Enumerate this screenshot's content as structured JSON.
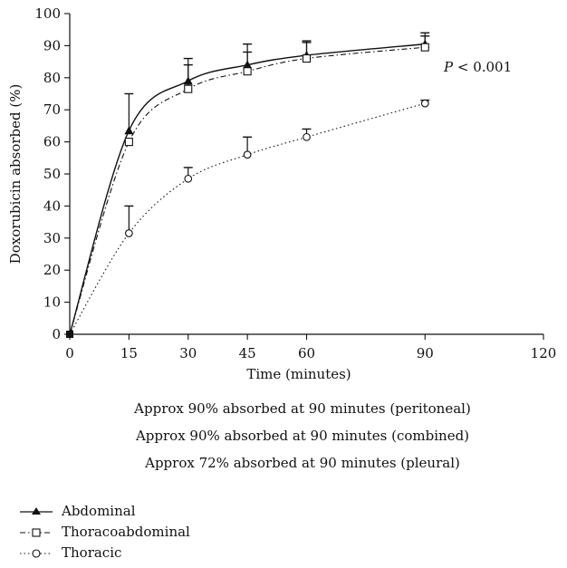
{
  "chart_data": {
    "type": "line",
    "xlabel": "Time (minutes)",
    "ylabel": "Doxorubicin absorbed (%)",
    "xlim": [
      0,
      120
    ],
    "ylim": [
      0,
      100
    ],
    "xticks": [
      0,
      15,
      30,
      45,
      60,
      90,
      120
    ],
    "yticks": [
      0,
      10,
      20,
      30,
      40,
      50,
      60,
      70,
      80,
      90,
      100
    ],
    "annotation": "P < 0.001",
    "series": [
      {
        "name": "Abdominal",
        "line": "solid",
        "marker": "filled-triangle",
        "x": [
          0,
          15,
          30,
          45,
          60,
          90
        ],
        "y": [
          0,
          63.5,
          79,
          84,
          87,
          90.5
        ],
        "error_upper": [
          0,
          75,
          86,
          90.5,
          91.5,
          94
        ]
      },
      {
        "name": "Thoracoabdominal",
        "line": "dash-dot",
        "marker": "open-square",
        "x": [
          0,
          15,
          30,
          45,
          60,
          90
        ],
        "y": [
          0,
          60,
          76.5,
          82,
          86,
          89.5
        ],
        "error_upper": [
          0,
          60,
          84,
          88,
          91,
          93
        ]
      },
      {
        "name": "Thoracic",
        "line": "dotted",
        "marker": "open-circle",
        "x": [
          0,
          15,
          30,
          45,
          60,
          90
        ],
        "y": [
          0,
          31.5,
          48.5,
          56,
          61.5,
          72
        ],
        "error_upper": [
          0,
          40,
          52,
          61.5,
          64,
          73
        ]
      }
    ],
    "notes": [
      "Approx 90% absorbed at 90 minutes (peritoneal)",
      "Approx 90% absorbed at 90 minutes (combined)",
      "Approx 72% absorbed at 90 minutes (pleural)"
    ],
    "legend": [
      {
        "label": "Abdominal"
      },
      {
        "label": "Thoracoabdominal"
      },
      {
        "label": "Thoracic"
      }
    ]
  }
}
